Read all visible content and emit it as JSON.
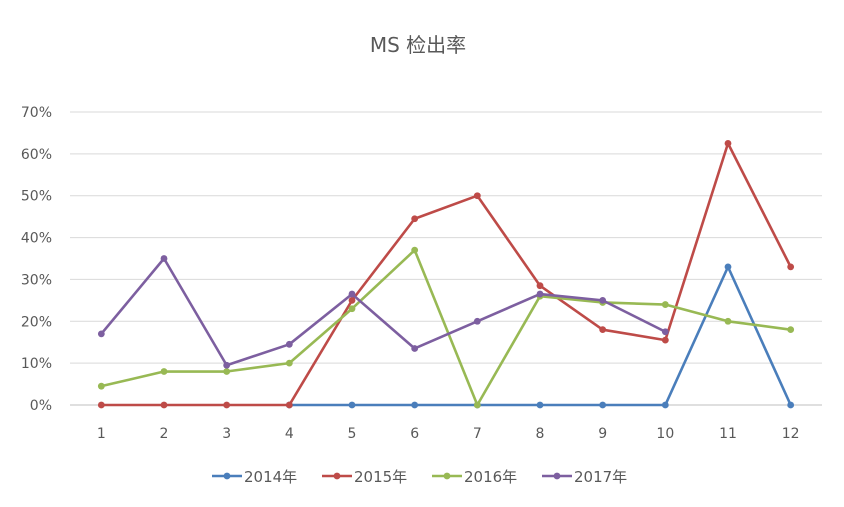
{
  "chart_data": {
    "type": "line",
    "title": "MS 检出率",
    "xlabel": "",
    "ylabel": "",
    "categories": [
      "1",
      "2",
      "3",
      "4",
      "5",
      "6",
      "7",
      "8",
      "9",
      "10",
      "11",
      "12"
    ],
    "y_ticks": [
      "0%",
      "10%",
      "20%",
      "30%",
      "40%",
      "50%",
      "60%",
      "70%"
    ],
    "ylim": [
      0,
      70
    ],
    "grid": true,
    "legend_position": "bottom",
    "series": [
      {
        "name": "2014年",
        "color": "#4a7ebb",
        "values": [
          null,
          null,
          null,
          0,
          0,
          0,
          0,
          0,
          0,
          0,
          33,
          0
        ]
      },
      {
        "name": "2015年",
        "color": "#be4b48",
        "values": [
          0,
          0,
          0,
          0,
          25,
          44.5,
          50,
          28.5,
          18,
          15.5,
          62.5,
          33
        ]
      },
      {
        "name": "2016年",
        "color": "#98b954",
        "values": [
          4.5,
          8,
          8,
          10,
          23,
          37,
          0,
          26,
          24.5,
          24,
          20,
          18
        ]
      },
      {
        "name": "2017年",
        "color": "#7d5fa0",
        "values": [
          17,
          35,
          9.5,
          14.5,
          26.5,
          13.5,
          20,
          26.5,
          25,
          17.5,
          null,
          null
        ]
      }
    ]
  }
}
